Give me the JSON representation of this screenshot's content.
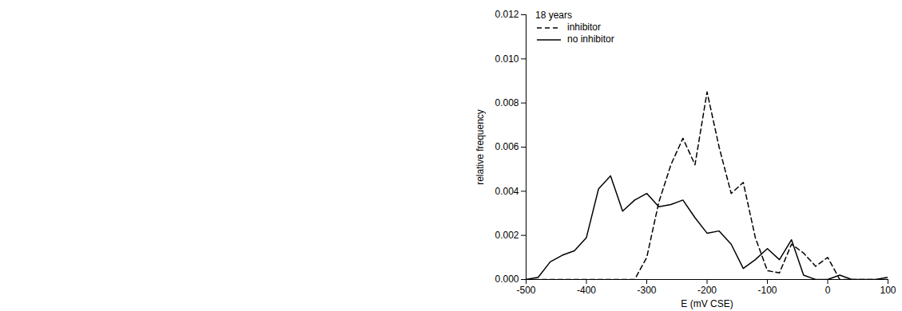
{
  "chart_data": {
    "type": "line",
    "xlabel": "E (mV CSE)",
    "ylabel": "relative frequency",
    "legend_title": "18 years",
    "legend": "top-left",
    "x": [
      -500,
      -480,
      -460,
      -440,
      -420,
      -400,
      -380,
      -360,
      -340,
      -320,
      -300,
      -280,
      -260,
      -240,
      -220,
      -200,
      -180,
      -160,
      -140,
      -120,
      -100,
      -80,
      -60,
      -40,
      -20,
      0,
      20,
      40,
      60,
      80,
      100
    ],
    "series": [
      {
        "name": "inhibitor",
        "color": "#000000",
        "line_style": "dashed",
        "values": [
          0,
          0,
          0,
          0,
          0,
          0,
          0,
          0,
          0,
          0,
          0.001,
          0.0035,
          0.0052,
          0.0064,
          0.0052,
          0.0085,
          0.006,
          0.0039,
          0.0044,
          0.0019,
          0.0004,
          0.0003,
          0.0016,
          0.0012,
          0.0006,
          0.001,
          0,
          0,
          0,
          0,
          0
        ]
      },
      {
        "name": "no inhibitor",
        "color": "#000000",
        "line_style": "solid",
        "values": [
          0,
          0.0001,
          0.0008,
          0.0011,
          0.0013,
          0.0019,
          0.0041,
          0.0047,
          0.0031,
          0.0036,
          0.0039,
          0.0033,
          0.0034,
          0.0036,
          0.0028,
          0.0021,
          0.0022,
          0.0016,
          0.0005,
          0.0009,
          0.0014,
          0.0009,
          0.0018,
          0.0002,
          0,
          0,
          0.0002,
          0,
          0,
          0,
          0.0001
        ]
      }
    ],
    "xlim": [
      -500,
      100
    ],
    "xticks": [
      -500,
      -400,
      -300,
      -200,
      -100,
      0,
      100
    ],
    "ylim": [
      0,
      0.012
    ],
    "yticks": [
      {
        "value": 0,
        "label": "0.000"
      },
      {
        "value": 0.002,
        "label": "0.002"
      },
      {
        "value": 0.004,
        "label": "0.004"
      },
      {
        "value": 0.006,
        "label": "0.006"
      },
      {
        "value": 0.008,
        "label": "0.008"
      },
      {
        "value": 0.01,
        "label": "0.010"
      },
      {
        "value": 0.012,
        "label": "0.012"
      }
    ]
  }
}
